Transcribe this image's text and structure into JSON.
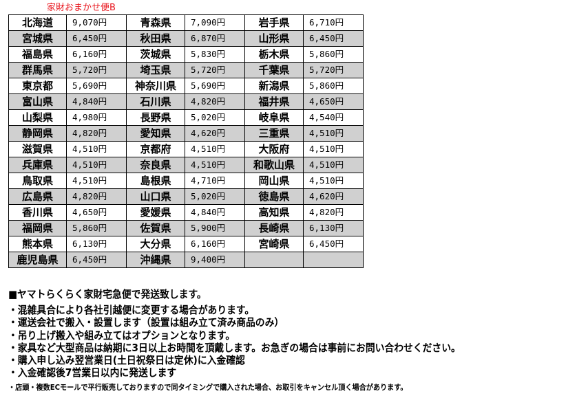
{
  "caption": "家財おまかせ便B",
  "rows": [
    [
      [
        "北海道",
        "9,070円"
      ],
      [
        "青森県",
        "7,090円"
      ],
      [
        "岩手県",
        "6,710円"
      ]
    ],
    [
      [
        "宮城県",
        "6,450円"
      ],
      [
        "秋田県",
        "6,870円"
      ],
      [
        "山形県",
        "6,450円"
      ]
    ],
    [
      [
        "福島県",
        "6,160円"
      ],
      [
        "茨城県",
        "5,830円"
      ],
      [
        "栃木県",
        "5,860円"
      ]
    ],
    [
      [
        "群馬県",
        "5,720円"
      ],
      [
        "埼玉県",
        "5,720円"
      ],
      [
        "千葉県",
        "5,720円"
      ]
    ],
    [
      [
        "東京都",
        "5,690円"
      ],
      [
        "神奈川県",
        "5,690円"
      ],
      [
        "新潟県",
        "5,860円"
      ]
    ],
    [
      [
        "富山県",
        "4,840円"
      ],
      [
        "石川県",
        "4,820円"
      ],
      [
        "福井県",
        "4,650円"
      ]
    ],
    [
      [
        "山梨県",
        "4,980円"
      ],
      [
        "長野県",
        "5,020円"
      ],
      [
        "岐阜県",
        "4,540円"
      ]
    ],
    [
      [
        "静岡県",
        "4,820円"
      ],
      [
        "愛知県",
        "4,620円"
      ],
      [
        "三重県",
        "4,510円"
      ]
    ],
    [
      [
        "滋賀県",
        "4,510円"
      ],
      [
        "京都府",
        "4,510円"
      ],
      [
        "大阪府",
        "4,510円"
      ]
    ],
    [
      [
        "兵庫県",
        "4,510円"
      ],
      [
        "奈良県",
        "4,510円"
      ],
      [
        "和歌山県",
        "4,510円"
      ]
    ],
    [
      [
        "鳥取県",
        "4,510円"
      ],
      [
        "島根県",
        "4,710円"
      ],
      [
        "岡山県",
        "4,510円"
      ]
    ],
    [
      [
        "広島県",
        "4,820円"
      ],
      [
        "山口県",
        "5,020円"
      ],
      [
        "徳島県",
        "4,620円"
      ]
    ],
    [
      [
        "香川県",
        "4,650円"
      ],
      [
        "愛媛県",
        "4,840円"
      ],
      [
        "高知県",
        "4,820円"
      ]
    ],
    [
      [
        "福岡県",
        "5,860円"
      ],
      [
        "佐賀県",
        "5,900円"
      ],
      [
        "長崎県",
        "6,130円"
      ]
    ],
    [
      [
        "熊本県",
        "6,130円"
      ],
      [
        "大分県",
        "6,160円"
      ],
      [
        "宮崎県",
        "6,450円"
      ]
    ],
    [
      [
        "鹿児島県",
        "6,450円"
      ],
      [
        "沖縄県",
        "9,400円"
      ],
      [
        "",
        ""
      ]
    ]
  ],
  "notes": {
    "title": "■ヤマトらくらく家財宅急便で発送致します。",
    "lines": [
      "・混雑具合により各社引越便に変更する場合があります。",
      "・運送会社で搬入・設置します（設置は組み立て済み商品のみ）",
      "・吊り上げ搬入や組み立てはオプションとなります。",
      "・家具など大型商品は納期に3日以上お時間を頂戴します。お急ぎの場合は事前にお問い合わせください。",
      "・購入申し込み翌営業日(土日祝祭日は定休)に入金確認",
      "・入金確認後7営業日以内に発送します"
    ],
    "small": "・店頭・複数ECモールで平行販売しておりますので同タイミングで購入された場合、お取引をキャンセル頂く場合があります。"
  },
  "colors": {
    "caption": "#e8141c",
    "row_alt": "#d0d0d0"
  }
}
